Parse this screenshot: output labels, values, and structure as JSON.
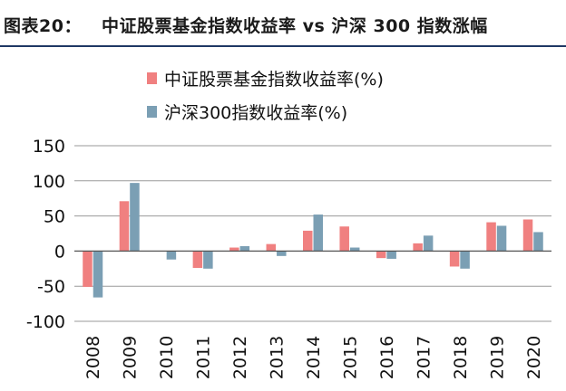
{
  "header": {
    "figure_label": "图表20：",
    "title": "中证股票基金指数收益率 vs 沪深 300 指数涨幅"
  },
  "colors": {
    "series_a": "#f08080",
    "series_b": "#7b9fb4",
    "grid": "#9a9a9a",
    "axis": "#555555"
  },
  "chart_data": {
    "type": "bar",
    "categories": [
      "2008",
      "2009",
      "2010",
      "2011",
      "2012",
      "2013",
      "2014",
      "2015",
      "2016",
      "2017",
      "2018",
      "2019",
      "2020"
    ],
    "series": [
      {
        "name": "中证股票基金指数收益率(%)",
        "values": [
          -51,
          71,
          0,
          -24,
          5,
          10,
          29,
          35,
          -10,
          11,
          -22,
          41,
          45
        ]
      },
      {
        "name": "沪深300指数收益率(%)",
        "values": [
          -66,
          97,
          -12,
          -25,
          7,
          -7,
          52,
          5,
          -11,
          22,
          -25,
          36,
          27
        ]
      }
    ],
    "yticks": [
      "150",
      "100",
      "50",
      "0",
      "-50",
      "-100"
    ],
    "ylim": [
      -100,
      150
    ],
    "grid": true,
    "legend_position": "top-center",
    "title": "",
    "xlabel": "",
    "ylabel": ""
  }
}
